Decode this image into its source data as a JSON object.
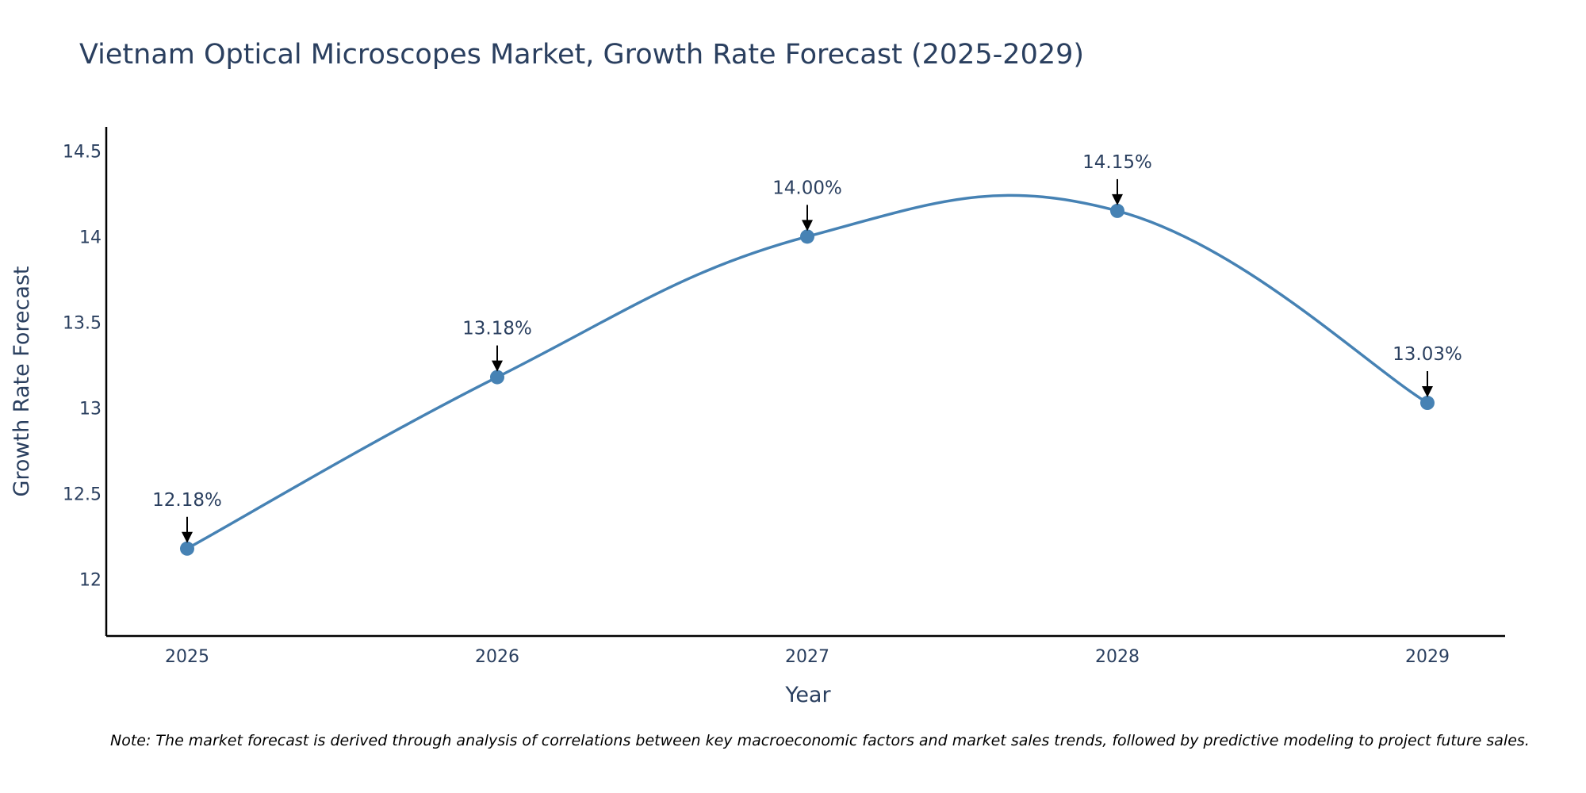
{
  "chart_data": {
    "type": "line",
    "title": "Vietnam Optical Microscopes Market, Growth Rate Forecast (2025-2029)",
    "xlabel": "Year",
    "ylabel": "Growth Rate Forecast",
    "categories": [
      "2025",
      "2026",
      "2027",
      "2028",
      "2029"
    ],
    "values": [
      12.18,
      13.18,
      14.0,
      14.15,
      13.03
    ],
    "data_labels": [
      "12.18%",
      "13.18%",
      "14.00%",
      "14.15%",
      "13.03%"
    ],
    "y_ticks": [
      12,
      12.5,
      13,
      13.5,
      14,
      14.5
    ],
    "y_tick_labels": [
      "12",
      "12.5",
      "13",
      "13.5",
      "14",
      "14.5"
    ],
    "ylim": [
      11.67,
      14.64
    ],
    "line_shape": "spline",
    "grid": false,
    "legend": "none",
    "colors": {
      "line": "#4682b4",
      "marker": "#4682b4",
      "axis": "#000000",
      "text": "#2a3f5f",
      "arrow": "#000000"
    },
    "note": "Note: The market forecast is derived through analysis of correlations between key macroeconomic factors and market sales trends, followed by predictive modeling to project future sales."
  }
}
